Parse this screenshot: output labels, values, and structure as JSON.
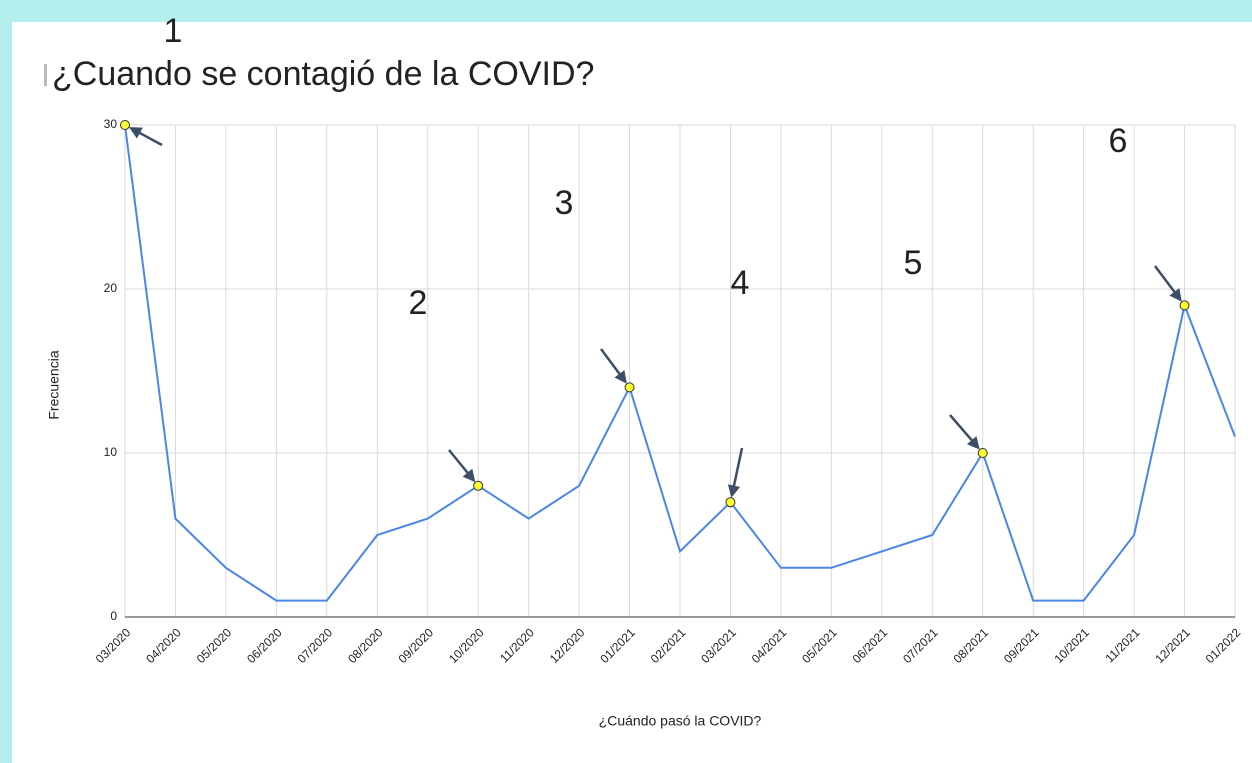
{
  "chart_data": {
    "type": "line",
    "title": "¿Cuando se contagió de la COVID?",
    "xlabel": "¿Cuándo pasó la COVID?",
    "ylabel": "Frecuencia",
    "categories": [
      "03/2020",
      "04/2020",
      "05/2020",
      "06/2020",
      "07/2020",
      "08/2020",
      "09/2020",
      "10/2020",
      "11/2020",
      "12/2020",
      "01/2021",
      "02/2021",
      "03/2021",
      "04/2021",
      "05/2021",
      "06/2021",
      "07/2021",
      "08/2021",
      "09/2021",
      "10/2021",
      "11/2021",
      "12/2021",
      "01/2022"
    ],
    "series": [
      {
        "name": "Frecuencia",
        "color": "#4a86e8",
        "values": [
          30,
          6,
          3,
          1,
          1,
          5,
          6,
          8,
          6,
          8,
          14,
          4,
          7,
          3,
          3,
          4,
          5,
          10,
          1,
          1,
          5,
          19,
          11
        ]
      }
    ],
    "ylim": [
      0,
      30
    ],
    "yticks": [
      0,
      10,
      20,
      30
    ],
    "grid": true,
    "annotations": [
      {
        "text": "1",
        "index": 0
      },
      {
        "text": "2",
        "index": 7
      },
      {
        "text": "3",
        "index": 10
      },
      {
        "text": "4",
        "index": 12
      },
      {
        "text": "5",
        "index": 17
      },
      {
        "text": "6",
        "index": 21
      }
    ],
    "marker_color": "#ffff33"
  }
}
